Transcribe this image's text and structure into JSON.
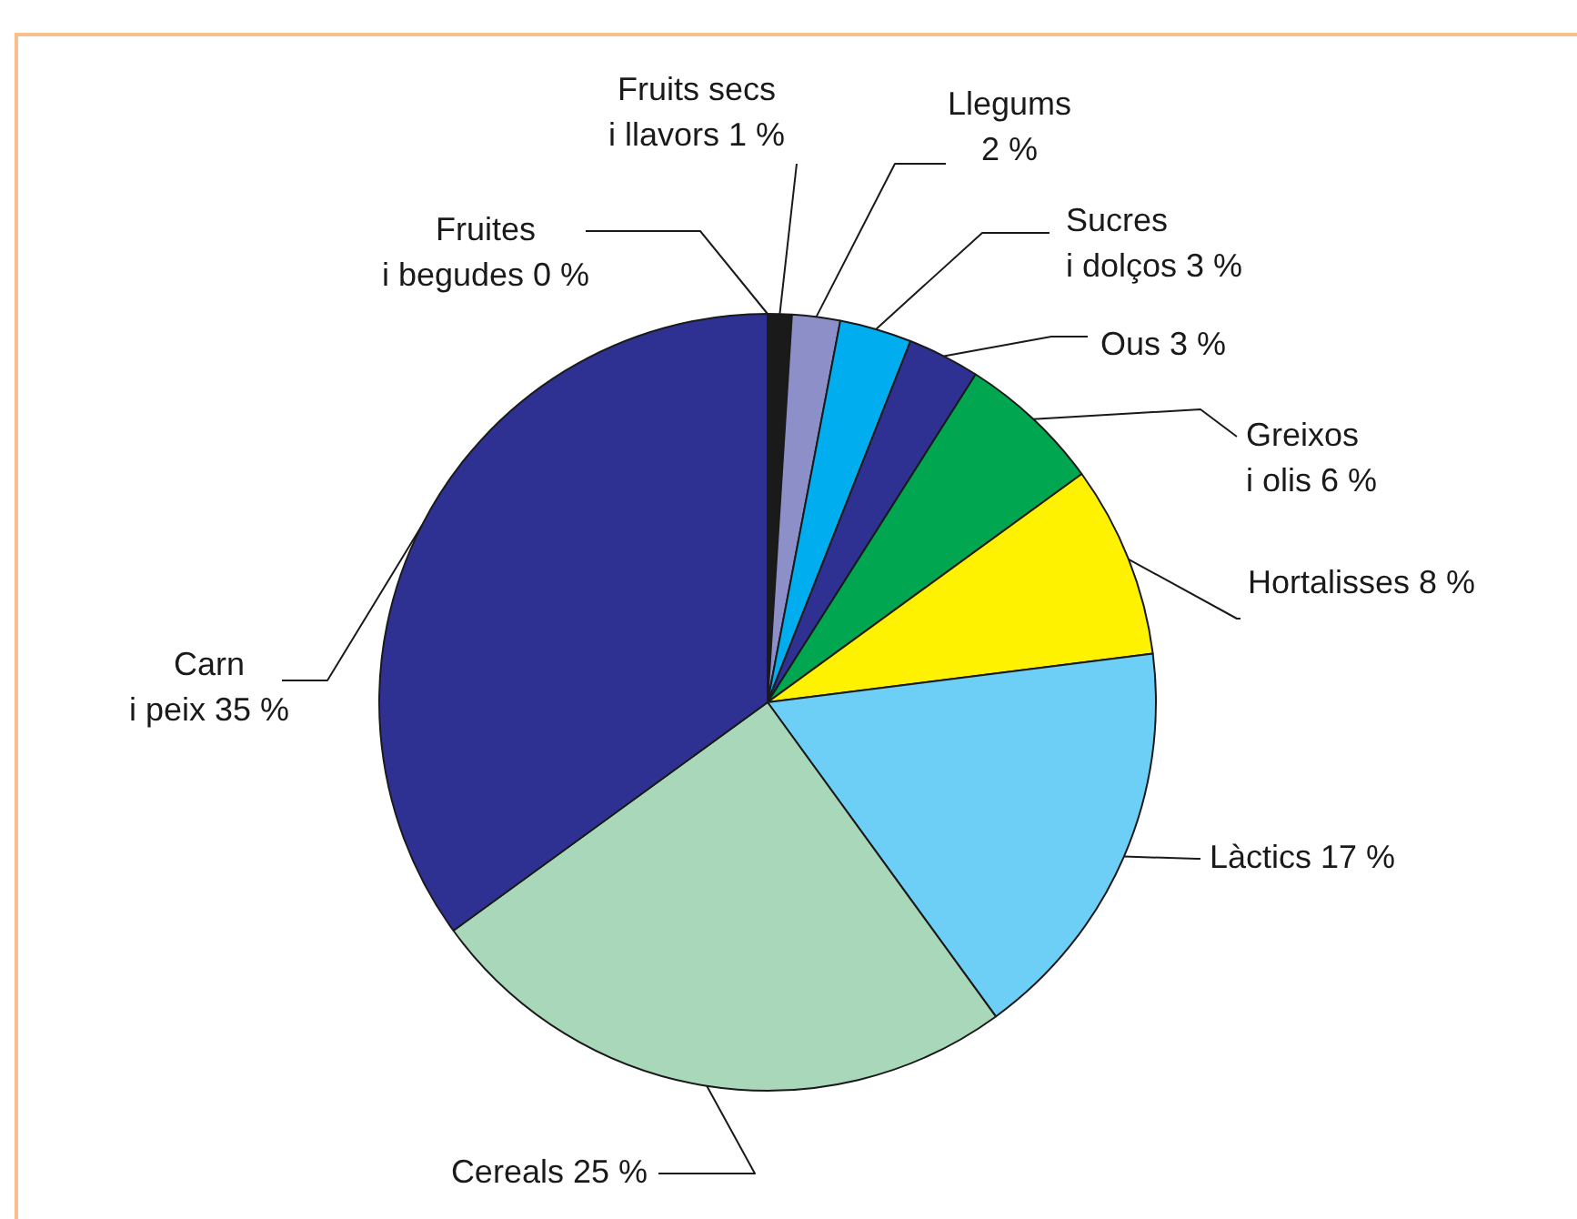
{
  "chart_data": {
    "type": "pie",
    "categories": [
      "Fruites\ni begudes",
      "Fruits secs\ni llavors",
      "Llegums",
      "Sucres\ni dolços",
      "Ous",
      "Greixos\ni olis",
      "Hortalisses",
      "Làctics",
      "Cereals",
      "Carn\ni peix"
    ],
    "values": [
      0,
      1,
      2,
      3,
      3,
      6,
      8,
      17,
      25,
      35
    ],
    "value_labels": [
      "0 %",
      "1 %",
      "2 %",
      "3 %",
      "3 %",
      "6 %",
      "8 %",
      "17 %",
      "25 %",
      "35 %"
    ],
    "colors": [
      "#ffffff",
      "#1a1a1a",
      "#8d8fc8",
      "#00aeef",
      "#2e3192",
      "#00a650",
      "#fff200",
      "#6dcff6",
      "#a8d8b9",
      "#2e3192"
    ],
    "legend": false
  }
}
